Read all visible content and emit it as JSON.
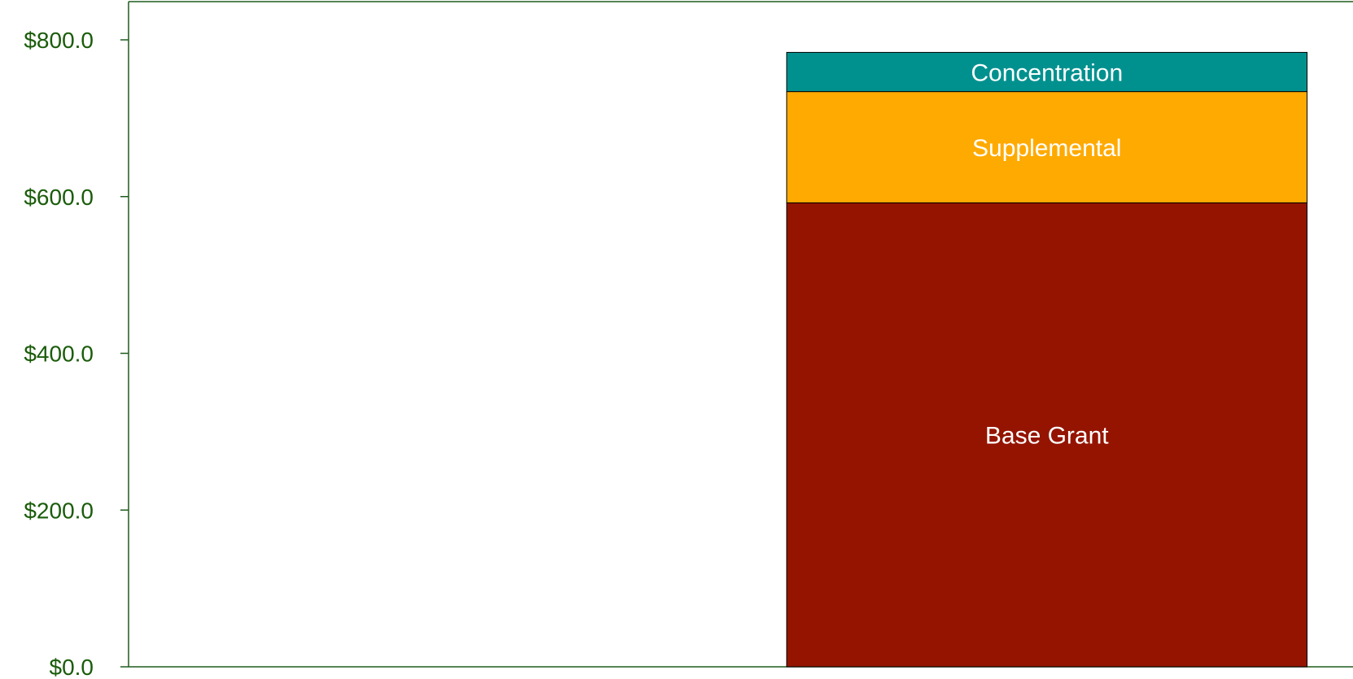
{
  "chart_data": {
    "type": "bar",
    "stacked": true,
    "categories": [
      "",
      ""
    ],
    "series": [
      {
        "name": "Base Grant",
        "values": [
          0,
          592
        ],
        "color": "#941400"
      },
      {
        "name": "Supplemental",
        "values": [
          0,
          142
        ],
        "color": "#FFAA00"
      },
      {
        "name": "Concentration",
        "values": [
          0,
          50
        ],
        "color": "#00918F"
      }
    ],
    "title": "",
    "xlabel": "",
    "ylabel": "",
    "ylim": [
      0,
      800
    ],
    "y_ticks": [
      0,
      200,
      400,
      600,
      800
    ],
    "y_tick_labels": [
      "$0.0",
      "$200.0",
      "$400.0",
      "$600.0",
      "$800.0"
    ],
    "grid": false,
    "legend": "none",
    "axis_color": "#1F5C1F",
    "tick_label_color": "#1A5C0A"
  }
}
